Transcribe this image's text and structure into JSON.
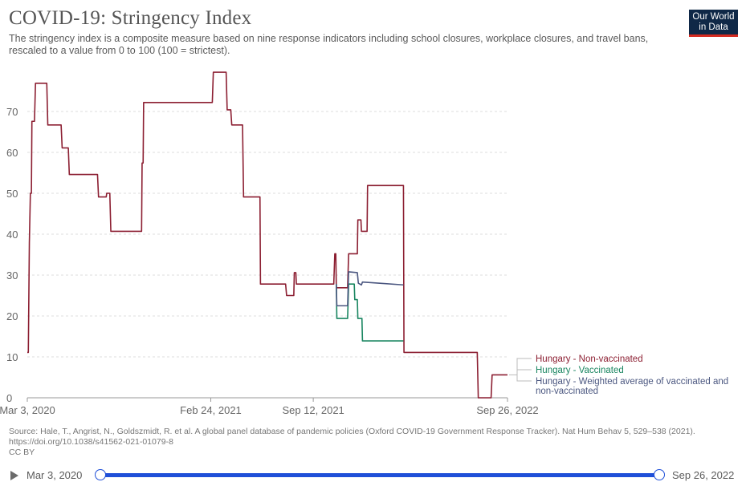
{
  "header": {
    "title": "COVID-19: Stringency Index",
    "subtitle": "The stringency index is a composite measure based on nine response indicators including school closures, workplace closures, and travel bans, rescaled to a value from 0 to 100 (100 = strictest).",
    "logo_line1": "Our World",
    "logo_line2": "in Data"
  },
  "footer": {
    "source": "Source: Hale, T., Angrist, N., Goldszmidt, R. et al. A global panel database of pandemic policies (Oxford COVID-19 Government Response Tracker). Nat Hum Behav 5, 529–538 (2021). https://doi.org/10.1038/s41562-021-01079-8",
    "license": "CC BY"
  },
  "timeline": {
    "start_label": "Mar 3, 2020",
    "end_label": "Sep 26, 2022"
  },
  "colors": {
    "non_vaccinated": "#8c1f32",
    "vaccinated": "#1a8661",
    "weighted": "#4b5780",
    "grid": "#dddddd",
    "axis_text": "#666666"
  },
  "chart_data": {
    "type": "line",
    "title": "COVID-19: Stringency Index",
    "ylim": [
      0,
      80
    ],
    "yticks": [
      0,
      10,
      20,
      30,
      40,
      50,
      60,
      70
    ],
    "xlim": [
      "2020-03-03",
      "2022-09-26"
    ],
    "xticks": [
      {
        "date": "2020-03-03",
        "label": "Mar 3, 2020"
      },
      {
        "date": "2021-02-24",
        "label": "Feb 24, 2021"
      },
      {
        "date": "2021-09-12",
        "label": "Sep 12, 2021"
      },
      {
        "date": "2022-09-26",
        "label": "Sep 26, 2022"
      }
    ],
    "grid": true,
    "legend": "right",
    "series": [
      {
        "name": "Hungary - Non-vaccinated",
        "color": "#8c1f32",
        "step": true,
        "points": [
          [
            "2020-03-03",
            11.1
          ],
          [
            "2020-03-05",
            11.1
          ],
          [
            "2020-03-07",
            38.0
          ],
          [
            "2020-03-09",
            50.0
          ],
          [
            "2020-03-11",
            50.0
          ],
          [
            "2020-03-12",
            67.6
          ],
          [
            "2020-03-17",
            67.6
          ],
          [
            "2020-03-19",
            76.9
          ],
          [
            "2020-04-10",
            76.9
          ],
          [
            "2020-04-12",
            66.7
          ],
          [
            "2020-05-08",
            66.7
          ],
          [
            "2020-05-10",
            61.1
          ],
          [
            "2020-05-22",
            61.1
          ],
          [
            "2020-05-24",
            54.6
          ],
          [
            "2020-07-18",
            54.6
          ],
          [
            "2020-07-20",
            49.1
          ],
          [
            "2020-08-04",
            49.1
          ],
          [
            "2020-08-05",
            50.0
          ],
          [
            "2020-08-11",
            50.0
          ],
          [
            "2020-08-13",
            40.7
          ],
          [
            "2020-10-12",
            40.7
          ],
          [
            "2020-10-13",
            57.4
          ],
          [
            "2020-10-15",
            57.4
          ],
          [
            "2020-10-16",
            72.2
          ],
          [
            "2021-02-27",
            72.2
          ],
          [
            "2021-03-01",
            79.6
          ],
          [
            "2021-03-26",
            79.6
          ],
          [
            "2021-03-28",
            70.4
          ],
          [
            "2021-04-04",
            70.4
          ],
          [
            "2021-04-06",
            66.7
          ],
          [
            "2021-04-27",
            66.7
          ],
          [
            "2021-04-29",
            49.1
          ],
          [
            "2021-05-31",
            49.1
          ],
          [
            "2021-06-01",
            27.8
          ],
          [
            "2021-07-20",
            27.8
          ],
          [
            "2021-07-22",
            25.0
          ],
          [
            "2021-08-05",
            25.0
          ],
          [
            "2021-08-06",
            30.6
          ],
          [
            "2021-08-09",
            30.6
          ],
          [
            "2021-08-10",
            27.8
          ],
          [
            "2021-10-22",
            27.8
          ],
          [
            "2021-10-24",
            35.2
          ],
          [
            "2021-10-26",
            35.2
          ],
          [
            "2021-10-27",
            26.9
          ],
          [
            "2021-11-18",
            26.9
          ],
          [
            "2021-11-20",
            35.2
          ],
          [
            "2021-12-07",
            35.2
          ],
          [
            "2021-12-08",
            43.5
          ],
          [
            "2021-12-14",
            43.5
          ],
          [
            "2021-12-15",
            40.7
          ],
          [
            "2021-12-26",
            40.7
          ],
          [
            "2021-12-27",
            51.9
          ],
          [
            "2022-03-07",
            51.9
          ],
          [
            "2022-03-08",
            11.1
          ],
          [
            "2022-07-29",
            11.1
          ],
          [
            "2022-07-31",
            0
          ],
          [
            "2022-08-25",
            0
          ],
          [
            "2022-08-27",
            5.6
          ],
          [
            "2022-09-26",
            5.6
          ]
        ]
      },
      {
        "name": "Hungary - Vaccinated",
        "color": "#1a8661",
        "step": true,
        "points": [
          [
            "2021-10-27",
            27.8
          ],
          [
            "2021-10-28",
            19.4
          ],
          [
            "2021-11-18",
            19.4
          ],
          [
            "2021-11-20",
            27.8
          ],
          [
            "2021-12-01",
            27.8
          ],
          [
            "2021-12-02",
            24.0
          ],
          [
            "2021-12-07",
            24.0
          ],
          [
            "2021-12-08",
            19.4
          ],
          [
            "2021-12-16",
            19.4
          ],
          [
            "2021-12-17",
            13.9
          ],
          [
            "2022-03-07",
            13.9
          ]
        ]
      },
      {
        "name": "Hungary - Weighted average of vaccinated and non-vaccinated",
        "color": "#4b5780",
        "step": false,
        "points": [
          [
            "2021-10-27",
            27.8
          ],
          [
            "2021-10-28",
            22.5
          ],
          [
            "2021-11-18",
            22.5
          ],
          [
            "2021-11-20",
            30.8
          ],
          [
            "2021-12-07",
            30.6
          ],
          [
            "2021-12-09",
            28.0
          ],
          [
            "2021-12-15",
            27.6
          ],
          [
            "2021-12-17",
            28.3
          ],
          [
            "2022-01-20",
            28.0
          ],
          [
            "2022-03-07",
            27.6
          ]
        ]
      }
    ],
    "legend_entries": [
      {
        "lines": [
          "Hungary - Non-vaccinated"
        ],
        "color": "#8c1f32"
      },
      {
        "lines": [
          "Hungary - Vaccinated"
        ],
        "color": "#1a8661"
      },
      {
        "lines": [
          "Hungary - Weighted average of vaccinated and",
          "non-vaccinated"
        ],
        "color": "#4b5780"
      }
    ]
  }
}
